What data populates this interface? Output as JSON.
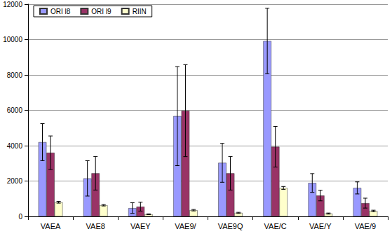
{
  "chart_data": {
    "type": "bar",
    "categories": [
      "VAEA",
      "VAE8",
      "VAEY",
      "VAE9/",
      "VAE9Q",
      "VAE/C",
      "VAE/Y",
      "VAE/9"
    ],
    "series": [
      {
        "name": "ORI l8",
        "color": "#9999ff",
        "values": [
          4200,
          2150,
          470,
          5670,
          3030,
          9920,
          1890,
          1610
        ],
        "errors": [
          1050,
          1000,
          300,
          2800,
          1100,
          1850,
          530,
          340
        ]
      },
      {
        "name": "ORI l9",
        "color": "#993366",
        "values": [
          3600,
          2440,
          550,
          5980,
          2440,
          3940,
          1180,
          750
        ],
        "errors": [
          950,
          950,
          250,
          2600,
          950,
          1150,
          300,
          280
        ]
      },
      {
        "name": "RIIN",
        "color": "#ffffcc",
        "values": [
          800,
          630,
          120,
          350,
          200,
          1610,
          160,
          310
        ],
        "errors": [
          50,
          40,
          20,
          40,
          30,
          80,
          30,
          40
        ]
      }
    ],
    "ylim": [
      0,
      12000
    ],
    "yticks": [
      0,
      2000,
      4000,
      6000,
      8000,
      10000,
      12000
    ],
    "grid": true,
    "legend": "top-left"
  }
}
